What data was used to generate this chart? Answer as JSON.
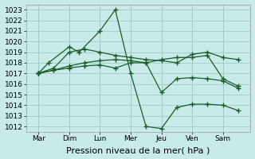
{
  "bg_color": "#c8eae8",
  "grid_color": "#a0ccc8",
  "line_color": "#1a5c2a",
  "xlabel": "Pression niveau de la mer( hPa )",
  "xlabel_fontsize": 8,
  "ylim": [
    1011.5,
    1023.5
  ],
  "yticks": [
    1012,
    1013,
    1014,
    1015,
    1016,
    1017,
    1018,
    1019,
    1020,
    1021,
    1022,
    1023
  ],
  "day_labels": [
    "Mar",
    "Dim",
    "Lun",
    "Mer",
    "Jeu",
    "Ven",
    "Sam"
  ],
  "day_positions": [
    0,
    1,
    2,
    3,
    4,
    5,
    6
  ],
  "series": [
    {
      "x": [
        0,
        0.33,
        1.0,
        1.33,
        2.0,
        2.5,
        3.0,
        3.5,
        4.0,
        4.5,
        5.0,
        5.5,
        6.0,
        6.5
      ],
      "y": [
        1017.0,
        1018.0,
        1019.5,
        1019.0,
        1021.0,
        1023.0,
        1017.0,
        1012.0,
        1011.8,
        1013.8,
        1014.1,
        1014.1,
        1014.0,
        1013.5
      ]
    },
    {
      "x": [
        0,
        0.5,
        1.0,
        1.5,
        2.0,
        2.5,
        3.0,
        3.5,
        4.0,
        4.5,
        5.0,
        5.5,
        6.0,
        6.5
      ],
      "y": [
        1017.0,
        1017.5,
        1019.0,
        1019.3,
        1019.0,
        1018.7,
        1018.5,
        1018.3,
        1018.2,
        1018.0,
        1018.8,
        1019.0,
        1018.5,
        1018.3
      ]
    },
    {
      "x": [
        0,
        0.5,
        1.0,
        1.5,
        2.0,
        2.5,
        3.0,
        3.5,
        4.0,
        4.5,
        5.0,
        5.5,
        6.0,
        6.5
      ],
      "y": [
        1017.0,
        1017.3,
        1017.7,
        1018.0,
        1018.2,
        1018.3,
        1018.2,
        1018.0,
        1018.3,
        1018.5,
        1018.5,
        1018.7,
        1016.5,
        1015.8
      ]
    },
    {
      "x": [
        0,
        0.5,
        1.0,
        1.5,
        2.0,
        2.5,
        3.0,
        3.5,
        4.0,
        4.5,
        5.0,
        5.5,
        6.0,
        6.5
      ],
      "y": [
        1017.0,
        1017.3,
        1017.5,
        1017.7,
        1017.8,
        1017.5,
        1018.0,
        1018.0,
        1015.2,
        1016.5,
        1016.6,
        1016.5,
        1016.3,
        1015.6
      ]
    }
  ]
}
